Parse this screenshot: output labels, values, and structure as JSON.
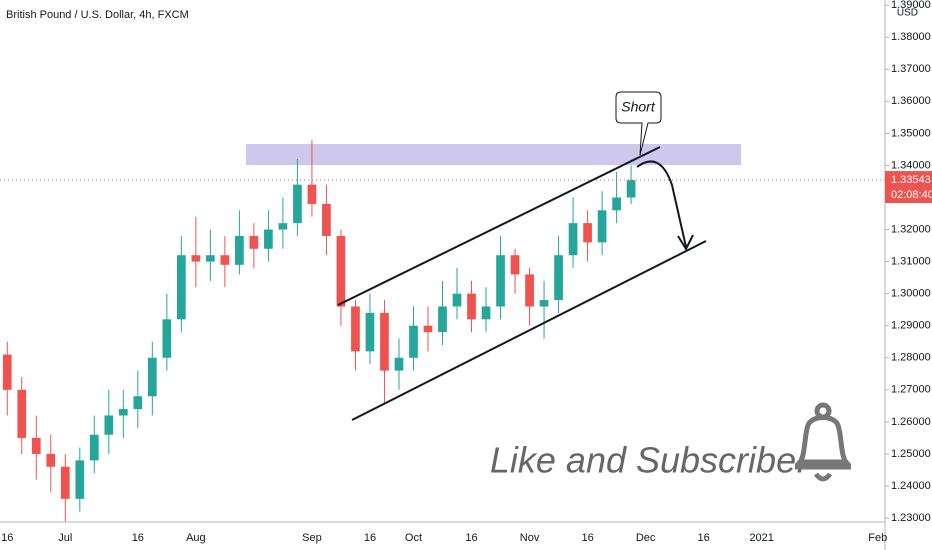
{
  "chart_data": {
    "type": "candlestick",
    "title": "British Pound / U.S. Dollar, 4h, FXCM",
    "currency": "USD",
    "annotations": [
      "Short",
      "Like and Subscribe!"
    ],
    "categories": [
      "16",
      null,
      null,
      null,
      "Jul",
      null,
      null,
      null,
      null,
      "16",
      null,
      null,
      null,
      "Aug",
      null,
      null,
      null,
      null,
      null,
      null,
      null,
      "Sep",
      null,
      null,
      null,
      "16",
      null,
      null,
      "Oct",
      null,
      null,
      null,
      "16",
      null,
      null,
      null,
      "Nov",
      null,
      null,
      null,
      "16",
      null,
      null,
      null,
      "Dec",
      null,
      null,
      null,
      "16",
      null,
      null,
      null,
      "2021",
      null,
      null,
      null,
      null,
      null,
      null,
      null,
      "Feb"
    ],
    "open": [
      1.281,
      1.27,
      1.255,
      1.25,
      1.246,
      1.236,
      1.248,
      1.256,
      1.262,
      1.264,
      1.268,
      1.28,
      1.292,
      1.312,
      1.31,
      1.312,
      1.309,
      1.318,
      1.314,
      1.32,
      1.322,
      1.334,
      1.328,
      1.318,
      1.296,
      1.282,
      1.294,
      1.276,
      1.28,
      1.29,
      1.288,
      1.296,
      1.3,
      1.292,
      1.296,
      1.312,
      1.306,
      1.296,
      1.298,
      1.312,
      1.322,
      1.316,
      1.326,
      1.33,
      null,
      null,
      null,
      null,
      null,
      null,
      null,
      null,
      null,
      null,
      null,
      null,
      null,
      null,
      null,
      null,
      null
    ],
    "high": [
      1.285,
      1.274,
      1.262,
      1.256,
      1.25,
      1.252,
      1.262,
      1.27,
      1.27,
      1.276,
      1.285,
      1.3,
      1.318,
      1.324,
      1.32,
      1.318,
      1.326,
      1.322,
      1.326,
      1.33,
      1.342,
      1.348,
      1.334,
      1.32,
      1.298,
      1.3,
      1.298,
      1.286,
      1.296,
      1.296,
      1.304,
      1.308,
      1.304,
      1.302,
      1.318,
      1.314,
      1.308,
      1.304,
      1.318,
      1.33,
      1.326,
      1.332,
      1.338,
      1.34,
      null,
      null,
      null,
      null,
      null,
      null,
      null,
      null,
      null,
      null,
      null,
      null,
      null,
      null,
      null,
      null,
      null
    ],
    "low": [
      1.262,
      1.25,
      1.242,
      1.238,
      1.229,
      1.232,
      1.244,
      1.25,
      1.255,
      1.258,
      1.262,
      1.276,
      1.288,
      1.302,
      1.304,
      1.302,
      1.306,
      1.308,
      1.31,
      1.314,
      1.318,
      1.324,
      1.312,
      1.29,
      1.276,
      1.278,
      1.266,
      1.27,
      1.276,
      1.282,
      1.284,
      1.292,
      1.288,
      1.288,
      1.292,
      1.3,
      1.29,
      1.286,
      1.294,
      1.308,
      1.31,
      1.312,
      1.322,
      1.328,
      null,
      null,
      null,
      null,
      null,
      null,
      null,
      null,
      null,
      null,
      null,
      null,
      null,
      null,
      null,
      null,
      null
    ],
    "close": [
      1.27,
      1.255,
      1.25,
      1.246,
      1.236,
      1.248,
      1.256,
      1.262,
      1.264,
      1.268,
      1.28,
      1.292,
      1.312,
      1.31,
      1.312,
      1.309,
      1.318,
      1.314,
      1.32,
      1.322,
      1.334,
      1.328,
      1.318,
      1.296,
      1.282,
      1.294,
      1.276,
      1.28,
      1.29,
      1.288,
      1.296,
      1.3,
      1.292,
      1.296,
      1.312,
      1.306,
      1.296,
      1.298,
      1.312,
      1.322,
      1.316,
      1.326,
      1.33,
      1.3354,
      null,
      null,
      null,
      null,
      null,
      null,
      null,
      null,
      null,
      null,
      null,
      null,
      null,
      null,
      null,
      null,
      null
    ],
    "up_color": "#26a69a",
    "down_color": "#ef5350",
    "ylim": [
      1.2294,
      1.3916
    ],
    "yticks": [
      {
        "value": 1.23,
        "label": "1.23000"
      },
      {
        "value": 1.24,
        "label": "1.24000"
      },
      {
        "value": 1.25,
        "label": "1.25000"
      },
      {
        "value": 1.26,
        "label": "1.26000"
      },
      {
        "value": 1.27,
        "label": "1.27000"
      },
      {
        "value": 1.28,
        "label": "1.28000"
      },
      {
        "value": 1.29,
        "label": "1.29000"
      },
      {
        "value": 1.3,
        "label": "1.30000"
      },
      {
        "value": 1.31,
        "label": "1.31000"
      },
      {
        "value": 1.32,
        "label": "1.32000"
      },
      {
        "value": 1.33,
        "label": "1.33000"
      },
      {
        "value": 1.34,
        "label": "1.34000"
      },
      {
        "value": 1.35,
        "label": "1.35000"
      },
      {
        "value": 1.36,
        "label": "1.36000"
      },
      {
        "value": 1.37,
        "label": "1.37000"
      },
      {
        "value": 1.38,
        "label": "1.38000"
      },
      {
        "value": 1.39,
        "label": "1.39000"
      }
    ],
    "last_price": {
      "value": 1.33543,
      "label": "1.33543"
    },
    "countdown": "02:08:40",
    "grid": false
  }
}
